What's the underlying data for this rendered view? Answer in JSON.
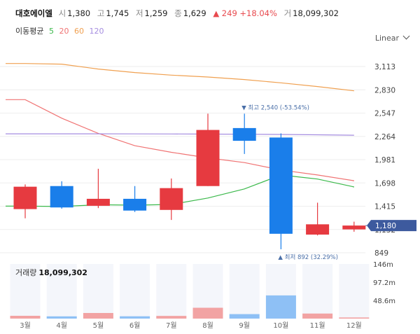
{
  "header": {
    "name": "대호에이엘",
    "open_label": "시",
    "open": "1,380",
    "high_label": "고",
    "high": "1,745",
    "low_label": "저",
    "low": "1,259",
    "close_label": "종",
    "close": "1,629",
    "change": "▲ 249 +18.04%",
    "volume_label": "거",
    "volume": "18,099,302"
  },
  "ma_legend": {
    "title": "이동평균",
    "periods": [
      {
        "label": "5",
        "color": "#3cb94c"
      },
      {
        "label": "20",
        "color": "#f07373"
      },
      {
        "label": "60",
        "color": "#f0a050"
      },
      {
        "label": "120",
        "color": "#a58de0"
      }
    ]
  },
  "scale_selector": {
    "label": "Linear"
  },
  "volume_title": {
    "label": "거래량",
    "value": "18,099,302"
  },
  "chart_data": {
    "type": "candlestick",
    "categories": [
      "3월",
      "4월",
      "5월",
      "6월",
      "7월",
      "8월",
      "9월",
      "10월",
      "11월",
      "12월"
    ],
    "candles": [
      {
        "open": 1380,
        "close": 1652,
        "high": 1680,
        "low": 1268,
        "color": "up"
      },
      {
        "open": 1660,
        "close": 1400,
        "high": 1718,
        "low": 1385,
        "color": "down"
      },
      {
        "open": 1420,
        "close": 1505,
        "high": 1870,
        "low": 1392,
        "color": "up"
      },
      {
        "open": 1505,
        "close": 1362,
        "high": 1660,
        "low": 1345,
        "color": "down"
      },
      {
        "open": 1370,
        "close": 1635,
        "high": 1752,
        "low": 1248,
        "color": "up"
      },
      {
        "open": 1660,
        "close": 2342,
        "high": 2540,
        "low": 1660,
        "color": "up"
      },
      {
        "open": 2365,
        "close": 2210,
        "high": 2540,
        "low": 2050,
        "color": "down"
      },
      {
        "open": 2250,
        "close": 1080,
        "high": 2300,
        "low": 892,
        "color": "down"
      },
      {
        "open": 1070,
        "close": 1195,
        "high": 1458,
        "low": 1060,
        "color": "up"
      },
      {
        "open": 1133,
        "close": 1180,
        "high": 1227,
        "low": 1105,
        "color": "up"
      }
    ],
    "moving_averages": [
      {
        "name": "5",
        "color": "#3cb94c",
        "values": [
          1416,
          1412,
          1433,
          1428,
          1436,
          1515,
          1625,
          1795,
          1745,
          1650
        ]
      },
      {
        "name": "20",
        "color": "#f07373",
        "values": [
          2710,
          2485,
          2300,
          2150,
          2070,
          2002,
          1945,
          1855,
          1795,
          1725
        ]
      },
      {
        "name": "60",
        "color": "#f0a050",
        "values": [
          3150,
          3142,
          3082,
          3040,
          3008,
          2985,
          2955,
          2915,
          2870,
          2818
        ]
      },
      {
        "name": "120",
        "color": "#a58de0",
        "values": [
          2295,
          2295,
          2295,
          2294,
          2293,
          2292,
          2290,
          2287,
          2283,
          2278
        ]
      }
    ],
    "y_ticks": [
      "3,113",
      "2,830",
      "2,547",
      "2,264",
      "1,981",
      "1,698",
      "1,415",
      "1,132",
      "849"
    ],
    "y_tick_values": [
      3113,
      2830,
      2547,
      2264,
      1981,
      1698,
      1415,
      1132,
      849
    ],
    "ylim": [
      849,
      3113
    ],
    "current_price": {
      "value": 1180,
      "label": "1,180"
    },
    "annotations": {
      "max": {
        "label": "▼ 최고 2,540 (-53.54%)",
        "value": 2540,
        "index": 6
      },
      "min": {
        "label": "▲ 최저 892 (32.29%)",
        "value": 892,
        "index": 7
      }
    },
    "volume": {
      "values": [
        7.5,
        6.0,
        15.0,
        6.2,
        7.2,
        29.0,
        12.0,
        62.0,
        13.5,
        3.0
      ],
      "unit": "m",
      "ticks": [
        "146m",
        "97.2m",
        "48.6m"
      ],
      "tick_values": [
        146,
        97.2,
        48.6
      ],
      "ylim": [
        0,
        146
      ]
    },
    "colors": {
      "up": "#e63a40",
      "down": "#1a7eea",
      "vol_up": "#f2a3a3",
      "vol_down": "#8ec0f5",
      "current": "#3d5a9e",
      "annotation": "#4a6fa8"
    }
  }
}
